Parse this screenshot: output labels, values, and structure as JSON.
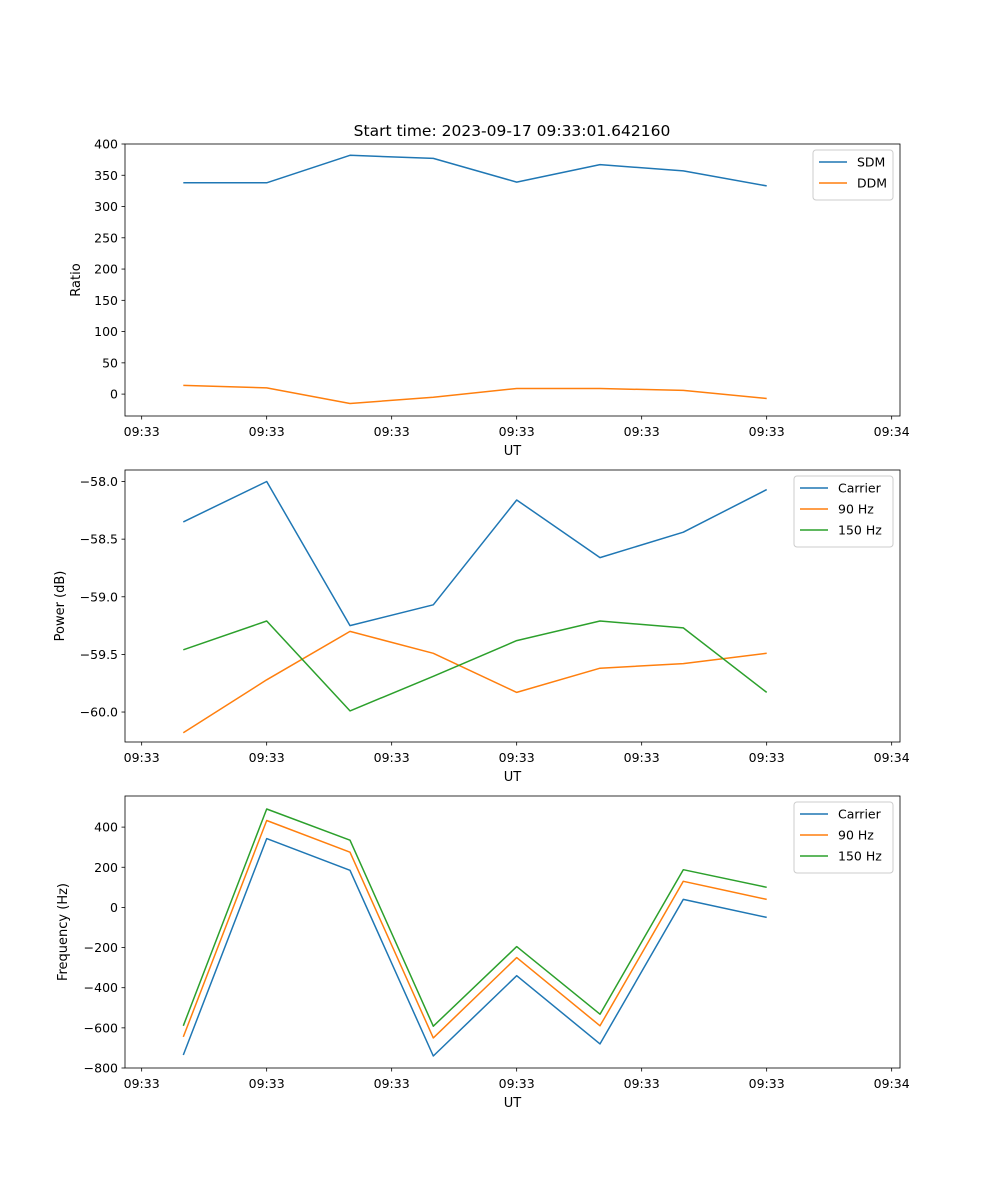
{
  "figure_title": "Start time: 2023-09-17 09:33:01.642160",
  "chart_data": [
    {
      "type": "line",
      "ylabel": "Ratio",
      "xlabel": "UT",
      "ylim": [
        -35,
        400
      ],
      "yticks": [
        0,
        50,
        100,
        150,
        200,
        250,
        300,
        350,
        400
      ],
      "ytick_labels": [
        "0",
        "50",
        "100",
        "150",
        "200",
        "250",
        "300",
        "350",
        "400"
      ],
      "xticks": [
        -0.5,
        1,
        2.5,
        4,
        5.5,
        7,
        8.5
      ],
      "xtick_labels": [
        "09:33",
        "09:33",
        "09:33",
        "09:33",
        "09:33",
        "09:33",
        "09:34"
      ],
      "xlim": [
        -0.7,
        8.6
      ],
      "legend": "upper right",
      "x": [
        0,
        1,
        2,
        3,
        4,
        5,
        6,
        7
      ],
      "series": [
        {
          "name": "SDM",
          "color": "#1f77b4",
          "values": [
            338,
            338,
            382,
            377,
            339,
            367,
            357,
            333
          ]
        },
        {
          "name": "DDM",
          "color": "#ff7f0e",
          "values": [
            14,
            10,
            -15,
            -5,
            9,
            9,
            6,
            -7
          ]
        }
      ]
    },
    {
      "type": "line",
      "ylabel": "Power (dB)",
      "xlabel": "UT",
      "ylim": [
        -60.26,
        -57.9
      ],
      "yticks": [
        -60.0,
        -59.5,
        -59.0,
        -58.5,
        -58.0
      ],
      "ytick_labels": [
        "−60.0",
        "−59.5",
        "−59.0",
        "−58.5",
        "−58.0"
      ],
      "xticks": [
        -0.5,
        1,
        2.5,
        4,
        5.5,
        7,
        8.5
      ],
      "xtick_labels": [
        "09:33",
        "09:33",
        "09:33",
        "09:33",
        "09:33",
        "09:33",
        "09:34"
      ],
      "xlim": [
        -0.7,
        8.6
      ],
      "legend": "upper right",
      "x": [
        0,
        1,
        2,
        3,
        4,
        5,
        6,
        7
      ],
      "series": [
        {
          "name": "Carrier",
          "color": "#1f77b4",
          "values": [
            -58.35,
            -58.0,
            -59.25,
            -59.07,
            -58.16,
            -58.66,
            -58.44,
            -58.07
          ]
        },
        {
          "name": "90 Hz",
          "color": "#ff7f0e",
          "values": [
            -60.18,
            -59.72,
            -59.3,
            -59.49,
            -59.83,
            -59.62,
            -59.58,
            -59.49
          ]
        },
        {
          "name": "150 Hz",
          "color": "#2ca02c",
          "values": [
            -59.46,
            -59.21,
            -59.99,
            -59.69,
            -59.38,
            -59.21,
            -59.27,
            -59.83
          ]
        }
      ]
    },
    {
      "type": "line",
      "ylabel": "Frequency (Hz)",
      "xlabel": "UT",
      "ylim": [
        -800,
        555
      ],
      "yticks": [
        -800,
        -600,
        -400,
        -200,
        0,
        200,
        400
      ],
      "ytick_labels": [
        "−800",
        "−600",
        "−400",
        "−200",
        "0",
        "200",
        "400"
      ],
      "xticks": [
        -0.5,
        1,
        2.5,
        4,
        5.5,
        7,
        8.5
      ],
      "xtick_labels": [
        "09:33",
        "09:33",
        "09:33",
        "09:33",
        "09:33",
        "09:33",
        "09:34"
      ],
      "xlim": [
        -0.7,
        8.6
      ],
      "legend": "upper right",
      "x": [
        0,
        1,
        2,
        3,
        4,
        5,
        6,
        7
      ],
      "series": [
        {
          "name": "Carrier",
          "color": "#1f77b4",
          "values": [
            -735,
            343,
            185,
            -740,
            -340,
            -680,
            40,
            -50
          ]
        },
        {
          "name": "90 Hz",
          "color": "#ff7f0e",
          "values": [
            -645,
            433,
            275,
            -650,
            -250,
            -590,
            130,
            40
          ]
        },
        {
          "name": "150 Hz",
          "color": "#2ca02c",
          "values": [
            -590,
            490,
            335,
            -592,
            -195,
            -532,
            188,
            100
          ]
        }
      ]
    }
  ]
}
